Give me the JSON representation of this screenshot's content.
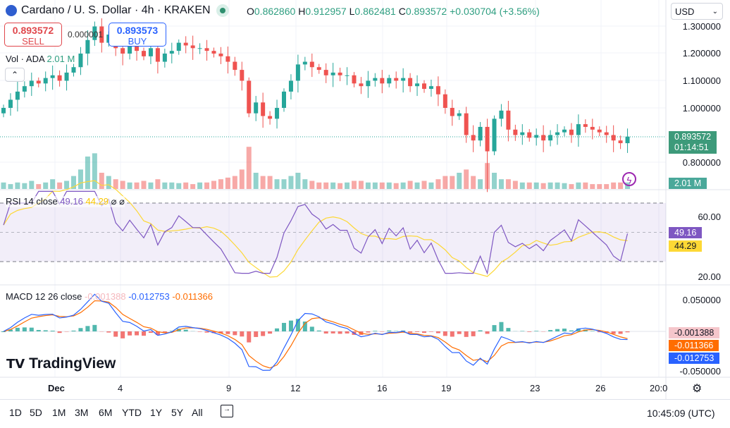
{
  "header": {
    "title": "Cardano / U. S. Dollar · 4h · KRAKEN",
    "open_label": "O",
    "open": "0.862860",
    "high_label": "H",
    "high": "0.912957",
    "low_label": "L",
    "low": "0.862481",
    "close_label": "C",
    "close": "0.893572",
    "change": "+0.030704 (+3.56%)"
  },
  "trade": {
    "sell_price": "0.893572",
    "sell_label": "SELL",
    "buy_price": "0.893573",
    "buy_label": "BUY",
    "spread": "0.000001"
  },
  "volume": {
    "label": "Vol · ADA",
    "value": "2.01 M"
  },
  "currency": "USD",
  "price_axis": {
    "ticks": [
      "1.300000",
      "1.200000",
      "1.100000",
      "1.000000",
      "0.800000"
    ],
    "last_price": "0.893572",
    "countdown": "01:14:51",
    "volume_tag": "2.01 M"
  },
  "rsi": {
    "label": "RSI 14 close",
    "value": "49.16",
    "ma_value": "44.29",
    "ticks": [
      "60.00",
      "20.00"
    ]
  },
  "macd": {
    "label": "MACD 12 26 close",
    "hist": "-0.001388",
    "macd": "-0.012753",
    "signal": "-0.011366",
    "ticks": [
      "0.050000",
      "-0.050000"
    ]
  },
  "x_axis": [
    "Dec",
    "4",
    "9",
    "12",
    "16",
    "19",
    "23",
    "26",
    "20:0"
  ],
  "brand": "TradingView",
  "timeframes": [
    "1D",
    "5D",
    "1M",
    "3M",
    "6M",
    "YTD",
    "1Y",
    "5Y",
    "All"
  ],
  "clock": "10:45:09 (UTC)",
  "colors": {
    "up": "#26a69a",
    "down": "#ef5350",
    "rsi": "#7e57c2",
    "rsi_ma": "#fdd835",
    "macd": "#2962ff",
    "signal": "#ff6d00"
  },
  "chart_data": {
    "type": "candlestick",
    "symbol": "ADA/USD",
    "interval": "approx. 8h samples",
    "closes": [
      1.0,
      1.03,
      1.06,
      1.08,
      1.1,
      1.09,
      1.11,
      1.12,
      1.1,
      1.13,
      1.15,
      1.2,
      1.25,
      1.3,
      1.24,
      1.27,
      1.22,
      1.2,
      1.23,
      1.21,
      1.19,
      1.22,
      1.17,
      1.2,
      1.21,
      1.24,
      1.23,
      1.22,
      1.22,
      1.21,
      1.2,
      1.19,
      1.17,
      1.14,
      1.1,
      0.98,
      1.02,
      0.97,
      0.96,
      1.0,
      1.06,
      1.1,
      1.16,
      1.17,
      1.15,
      1.14,
      1.12,
      1.13,
      1.12,
      1.12,
      1.09,
      1.08,
      1.1,
      1.11,
      1.09,
      1.11,
      1.1,
      1.11,
      1.08,
      1.09,
      1.07,
      1.08,
      1.05,
      1.0,
      0.97,
      0.98,
      0.9,
      0.88,
      0.93,
      0.84,
      0.96,
      0.99,
      0.92,
      0.9,
      0.91,
      0.89,
      0.9,
      0.88,
      0.9,
      0.91,
      0.92,
      0.9,
      0.94,
      0.93,
      0.92,
      0.91,
      0.9,
      0.88,
      0.87,
      0.894
    ],
    "volumes_m": [
      2,
      1.5,
      2,
      1.8,
      2.5,
      1.5,
      2,
      3,
      2,
      2.5,
      4,
      6,
      10,
      11,
      5,
      4,
      3,
      2.5,
      2,
      2,
      2.5,
      2,
      3,
      2,
      2,
      1.8,
      2,
      1.5,
      2,
      2,
      2.5,
      3,
      3.5,
      4,
      6,
      13,
      5,
      4,
      4,
      3,
      3,
      4,
      5,
      3,
      2.5,
      2,
      2,
      2,
      1.8,
      2,
      2.5,
      2.5,
      2,
      2,
      2,
      2,
      1.8,
      2,
      2.5,
      2,
      2.5,
      2,
      3,
      4,
      4,
      5,
      6,
      4,
      3,
      8,
      5,
      3,
      3,
      2.5,
      2,
      2,
      2,
      1.8,
      2,
      2,
      1.8,
      1.5,
      2,
      2,
      1.5,
      1.5,
      1.5,
      2,
      2,
      2.01
    ],
    "ylim": [
      0.75,
      1.32
    ]
  }
}
